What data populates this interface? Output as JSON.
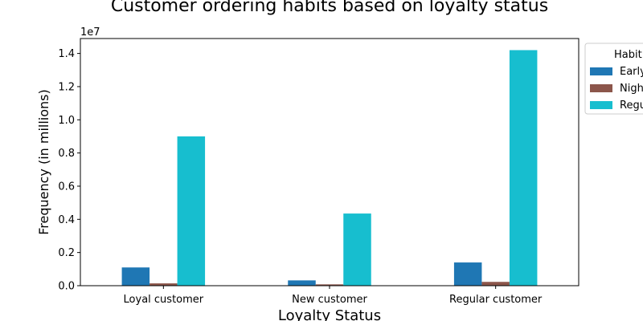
{
  "chart_data": {
    "type": "bar",
    "title": "Customer ordering habits based on loyalty status",
    "xlabel": "Loyalty Status",
    "ylabel": "Frequency (in millions)",
    "scale_label": "1e7",
    "categories": [
      "Loyal customer",
      "New customer",
      "Regular customer"
    ],
    "series": [
      {
        "name": "Early",
        "color": "#1f77b4",
        "values": [
          1100000,
          320000,
          1400000
        ]
      },
      {
        "name": "Nigh",
        "color": "#8c564b",
        "values": [
          140000,
          80000,
          230000
        ]
      },
      {
        "name": "Regu",
        "color": "#17becf",
        "values": [
          9000000,
          4350000,
          14200000
        ]
      }
    ],
    "ylim": [
      0,
      14900000
    ],
    "yticks": [
      0,
      2000000,
      4000000,
      6000000,
      8000000,
      10000000,
      12000000,
      14000000
    ],
    "ytick_labels": [
      "0.0",
      "0.2",
      "0.4",
      "0.6",
      "0.8",
      "1.0",
      "1.2",
      "1.4"
    ],
    "grid": false,
    "legend": {
      "title": "Habit",
      "placement": "outside-top-right"
    }
  }
}
